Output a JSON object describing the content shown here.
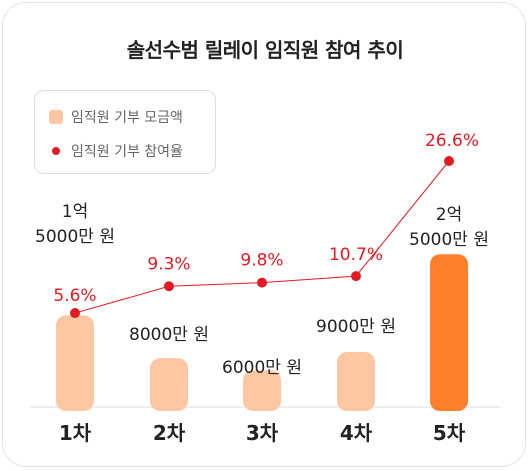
{
  "title": "솔선수범 릴레이 임직원 참여 추이",
  "legend": {
    "bars_label": "임직원 기부 모금액",
    "line_label": "임직원 기부 참여율"
  },
  "colors": {
    "bar": "#fdc7a3",
    "bar_highlight": "#fd7f2c",
    "line": "#e21b23",
    "text": "#222222",
    "axis": "#dddddd"
  },
  "chart_data": {
    "type": "bar",
    "categories": [
      "1차",
      "2차",
      "3차",
      "4차",
      "5차"
    ],
    "series": [
      {
        "name": "임직원 기부 모금액",
        "type": "bar",
        "values": [
          150000000,
          80000000,
          60000000,
          90000000,
          250000000
        ],
        "labels": [
          "1억\n5000만 원",
          "8000만 원",
          "6000만 원",
          "9000만 원",
          "2억\n5000만 원"
        ],
        "highlight_index": 4
      },
      {
        "name": "임직원 기부 참여율",
        "type": "line",
        "values": [
          5.6,
          9.3,
          9.8,
          10.7,
          26.6
        ],
        "labels": [
          "5.6%",
          "9.3%",
          "9.8%",
          "10.7%",
          "26.6%"
        ]
      }
    ]
  }
}
